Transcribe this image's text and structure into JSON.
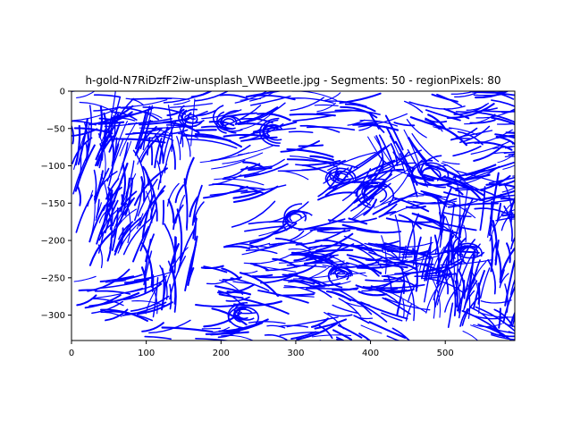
{
  "chart_data": {
    "type": "line",
    "title": "h-gold-N7RiDzfF2iw-unsplash_VWBeetle.jpg - Segments: 50 - regionPixels: 80",
    "xlabel": "",
    "ylabel": "",
    "xlim": [
      0,
      593
    ],
    "ylim": [
      -334,
      0
    ],
    "xticks": [
      0,
      100,
      200,
      300,
      400,
      500
    ],
    "yticks": [
      0,
      -50,
      -100,
      -150,
      -200,
      -250,
      -300
    ],
    "grid": false,
    "legend": "none",
    "line_color": "#0000ff",
    "regions": [
      {
        "x0": 0,
        "x1": 180,
        "y0": 0,
        "y1": -65,
        "angle": 2
      },
      {
        "x0": 170,
        "x1": 250,
        "y0": 0,
        "y1": -70,
        "angle": 10
      },
      {
        "x0": 290,
        "x1": 390,
        "y0": 0,
        "y1": -55,
        "angle": 5
      },
      {
        "x0": 390,
        "x1": 460,
        "y0": -20,
        "y1": -85,
        "angle": -60
      },
      {
        "x0": 430,
        "x1": 500,
        "y0": 0,
        "y1": -50,
        "angle": -20
      },
      {
        "x0": 500,
        "x1": 593,
        "y0": 0,
        "y1": -65,
        "angle": -5
      },
      {
        "x0": 0,
        "x1": 60,
        "y0": -55,
        "y1": -240,
        "angle": 75
      },
      {
        "x0": 30,
        "x1": 95,
        "y0": -60,
        "y1": -230,
        "angle": 70
      },
      {
        "x0": 95,
        "x1": 165,
        "y0": -70,
        "y1": -200,
        "angle": 85
      },
      {
        "x0": 165,
        "x1": 240,
        "y0": -80,
        "y1": -150,
        "angle": 5
      },
      {
        "x0": 270,
        "x1": 330,
        "y0": -70,
        "y1": -115,
        "angle": 0
      },
      {
        "x0": 330,
        "x1": 430,
        "y0": -100,
        "y1": -175,
        "angle": 30
      },
      {
        "x0": 430,
        "x1": 520,
        "y0": -90,
        "y1": -175,
        "angle": -15
      },
      {
        "x0": 500,
        "x1": 593,
        "y0": -60,
        "y1": -175,
        "angle": 10
      },
      {
        "x0": 200,
        "x1": 330,
        "y0": -175,
        "y1": -230,
        "angle": 10
      },
      {
        "x0": 330,
        "x1": 430,
        "y0": -170,
        "y1": -230,
        "angle": -15
      },
      {
        "x0": 410,
        "x1": 510,
        "y0": -210,
        "y1": -260,
        "angle": 0
      },
      {
        "x0": 490,
        "x1": 593,
        "y0": -170,
        "y1": -320,
        "angle": 80
      },
      {
        "x0": 0,
        "x1": 95,
        "y0": -250,
        "y1": -315,
        "angle": 5
      },
      {
        "x0": 95,
        "x1": 165,
        "y0": -220,
        "y1": -305,
        "angle": 80
      },
      {
        "x0": 165,
        "x1": 250,
        "y0": -230,
        "y1": -300,
        "angle": -10
      },
      {
        "x0": 245,
        "x1": 330,
        "y0": -190,
        "y1": -275,
        "angle": 0
      },
      {
        "x0": 330,
        "x1": 420,
        "y0": -230,
        "y1": -270,
        "angle": -5
      },
      {
        "x0": 420,
        "x1": 520,
        "y0": -215,
        "y1": -310,
        "angle": 80
      },
      {
        "x0": 515,
        "x1": 593,
        "y0": -280,
        "y1": -334,
        "angle": -20
      },
      {
        "x0": 200,
        "x1": 330,
        "y0": -310,
        "y1": -334,
        "angle": 10
      },
      {
        "x0": 330,
        "x1": 430,
        "y0": -260,
        "y1": -334,
        "angle": -25
      },
      {
        "x0": 60,
        "x1": 210,
        "y0": -315,
        "y1": -334,
        "angle": 0
      }
    ],
    "curls": [
      {
        "x": 300,
        "y": -168,
        "r": 22
      },
      {
        "x": 360,
        "y": -115,
        "r": 20
      },
      {
        "x": 405,
        "y": -135,
        "r": 25
      },
      {
        "x": 480,
        "y": -110,
        "r": 28
      },
      {
        "x": 270,
        "y": -55,
        "r": 20
      },
      {
        "x": 210,
        "y": -40,
        "r": 22
      },
      {
        "x": 160,
        "y": -35,
        "r": 18
      },
      {
        "x": 530,
        "y": -215,
        "r": 22
      },
      {
        "x": 230,
        "y": -300,
        "r": 20
      },
      {
        "x": 360,
        "y": -245,
        "r": 18
      }
    ]
  }
}
